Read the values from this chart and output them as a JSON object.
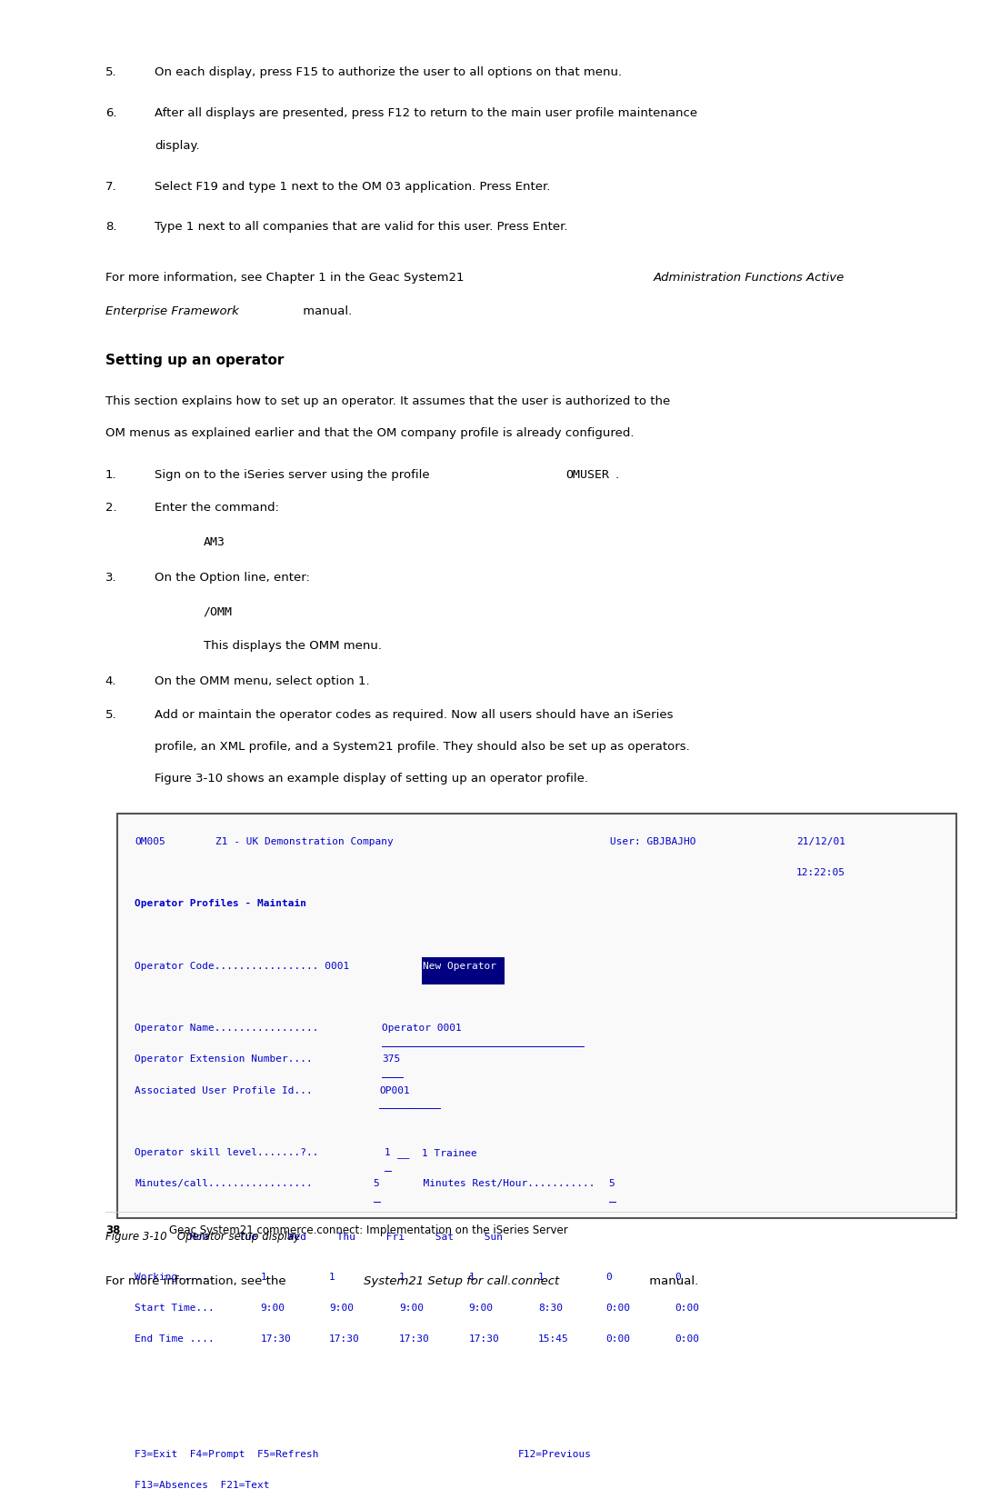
{
  "bg_color": "#ffffff",
  "page_width": 10.8,
  "page_height": 13.97,
  "body_fontsize": 9.5,
  "mono_size": 8.0,
  "blue_color": "#0000cc",
  "dark_blue_bg": "#000080",
  "items_top": [
    {
      "num": "5.",
      "lines": [
        "On each display, press F15 to authorize the user to all options on that menu."
      ]
    },
    {
      "num": "6.",
      "lines": [
        "After all displays are presented, press F12 to return to the main user profile maintenance",
        "display."
      ]
    },
    {
      "num": "7.",
      "lines": [
        "Select F19 and type 1 next to the OM 03 application. Press Enter."
      ]
    },
    {
      "num": "8.",
      "lines": [
        "Type 1 next to all companies that are valid for this user. Press Enter."
      ]
    }
  ],
  "section_heading": "Setting up an operator",
  "section_intro_lines": [
    "This section explains how to set up an operator. It assumes that the user is authorized to the",
    "OM menus as explained earlier and that the OM company profile is already configured."
  ],
  "cmd_am3": "AM3",
  "cmd_omm": "/OMM",
  "cmd_omm_desc": "This displays the OMM menu.",
  "figure_caption": "Figure 3-10   Operator setup display",
  "footer_para_normal": "For more information, see the ",
  "footer_para_italic": "System21 Setup for call.connect",
  "footer_para_end": " manual.",
  "footer_page": "38",
  "footer_text": "Geac System21 commerce.connect: Implementation on the iSeries Server"
}
